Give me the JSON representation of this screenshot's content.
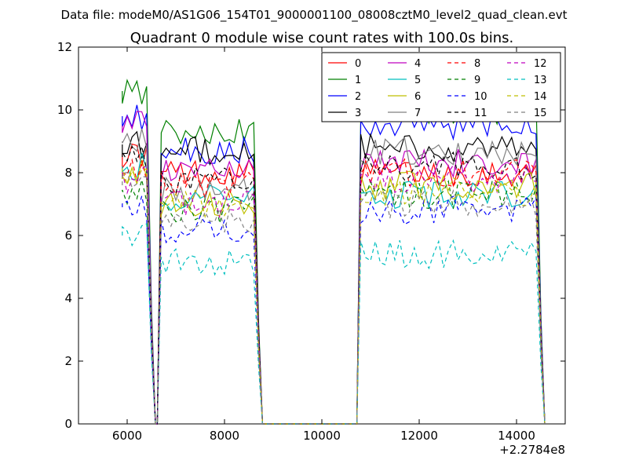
{
  "chart_data": {
    "type": "line",
    "suptitle": "Data file: modeM0/AS1G06_154T01_9000001100_08008cztM0_level2_quad_clean.evt",
    "title": "Quadrant 0 module wise count rates with 100.0s bins.",
    "xlabel": "",
    "ylabel": "",
    "x_offset_label": "+2.2784e8",
    "xlim": [
      5000,
      15000
    ],
    "ylim": [
      0,
      12
    ],
    "xticks": [
      6000,
      8000,
      10000,
      12000,
      14000
    ],
    "xtick_labels": [
      "6000",
      "8000",
      "10000",
      "12000",
      "14000"
    ],
    "yticks": [
      0,
      2,
      4,
      6,
      8,
      10,
      12
    ],
    "ytick_labels": [
      "0",
      "2",
      "4",
      "6",
      "8",
      "10",
      "12"
    ],
    "grid": false,
    "legend_position": "top-right",
    "legend_columns": 4,
    "segments": [
      {
        "start": 5900,
        "end": 6500
      },
      {
        "start": 6700,
        "end": 8700
      },
      {
        "start": 10800,
        "end": 14500
      }
    ],
    "series": [
      {
        "name": "0",
        "color": "#ff0000",
        "dash": "solid",
        "levels": [
          8.6,
          8.0,
          8.0
        ]
      },
      {
        "name": "1",
        "color": "#008000",
        "dash": "solid",
        "levels": [
          10.6,
          9.3,
          10.0
        ]
      },
      {
        "name": "2",
        "color": "#0000ff",
        "dash": "solid",
        "levels": [
          9.8,
          8.7,
          9.5
        ]
      },
      {
        "name": "3",
        "color": "#000000",
        "dash": "solid",
        "levels": [
          8.9,
          8.7,
          8.8
        ]
      },
      {
        "name": "4",
        "color": "#bf00bf",
        "dash": "solid",
        "levels": [
          9.5,
          8.0,
          8.3
        ]
      },
      {
        "name": "5",
        "color": "#00bfbf",
        "dash": "solid",
        "levels": [
          8.2,
          7.2,
          7.3
        ]
      },
      {
        "name": "6",
        "color": "#bfbf00",
        "dash": "solid",
        "levels": [
          8.0,
          7.0,
          7.6
        ]
      },
      {
        "name": "7",
        "color": "#808080",
        "dash": "solid",
        "levels": [
          9.0,
          7.4,
          8.7
        ]
      },
      {
        "name": "8",
        "color": "#ff0000",
        "dash": "dashed",
        "levels": [
          8.0,
          7.6,
          8.0
        ]
      },
      {
        "name": "9",
        "color": "#008000",
        "dash": "dashed",
        "levels": [
          7.4,
          6.8,
          7.3
        ]
      },
      {
        "name": "10",
        "color": "#0000ff",
        "dash": "dashed",
        "levels": [
          6.9,
          6.2,
          6.8
        ]
      },
      {
        "name": "11",
        "color": "#000000",
        "dash": "dashed",
        "levels": [
          8.5,
          7.8,
          8.2
        ]
      },
      {
        "name": "12",
        "color": "#bf00bf",
        "dash": "dashed",
        "levels": [
          7.8,
          7.0,
          7.8
        ]
      },
      {
        "name": "13",
        "color": "#00bfbf",
        "dash": "dashed",
        "levels": [
          6.0,
          5.2,
          5.4
        ]
      },
      {
        "name": "14",
        "color": "#bfbf00",
        "dash": "dashed",
        "levels": [
          7.8,
          7.0,
          7.4
        ]
      },
      {
        "name": "15",
        "color": "#808080",
        "dash": "dashed",
        "levels": [
          7.6,
          6.4,
          7.0
        ]
      }
    ]
  }
}
